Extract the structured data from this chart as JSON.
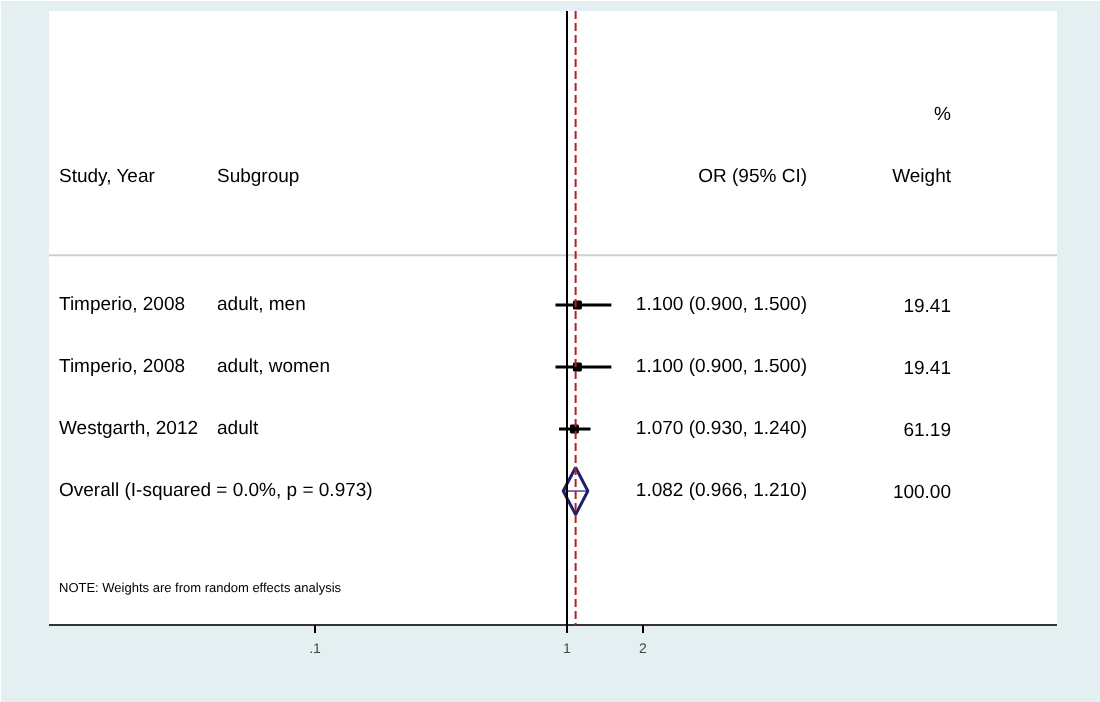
{
  "chart_data": {
    "type": "scatter",
    "orientation": "horizontal",
    "log": "x",
    "categories": [
      "Timperio, 2008",
      "Timperio, 2008",
      "Westgarth, 2012",
      "Overall  (I-squared = 0.0%, p = 0.973)"
    ],
    "y2_categories": [
      "adult, men",
      "adult, women",
      "adult",
      null
    ],
    "xlim": [
      0.0088,
      88
    ],
    "xticks": [
      {
        "value": 0.1,
        "label": ".1"
      },
      1,
      2
    ],
    "series": [
      {
        "marker": "square",
        "color": "#000000",
        "values": [
          1.1,
          1.1,
          1.07,
          null
        ],
        "errors": [
          [
            0.9,
            1.5
          ],
          [
            0.9,
            1.5
          ],
          [
            0.93,
            1.24
          ],
          null
        ],
        "value_labels": [
          "1.100 (0.900, 1.500)",
          "1.100 (0.900, 1.500)",
          "1.070 (0.930, 1.240)",
          null
        ]
      },
      {
        "marker": "diamond",
        "color": "#1f1f6e",
        "values": [
          null,
          null,
          null,
          1.082
        ],
        "errors": [
          null,
          null,
          null,
          [
            0.966,
            1.21
          ]
        ],
        "value_labels": [
          null,
          null,
          null,
          "1.082 (0.966, 1.210)"
        ]
      }
    ],
    "ref_lines": [
      {
        "axis": "x",
        "value": 1,
        "color": "#000000",
        "line_style": "solid"
      },
      {
        "axis": "x",
        "value": 1.082,
        "color": "#b22222",
        "line_style": "dashed"
      }
    ],
    "annotations": [
      "%",
      "Study, Year",
      "Subgroup",
      "OR (95% CI)",
      "Weight",
      "19.41",
      "19.41",
      "61.19",
      "100.00",
      "NOTE: Weights are from random effects analysis"
    ],
    "grid": false
  }
}
